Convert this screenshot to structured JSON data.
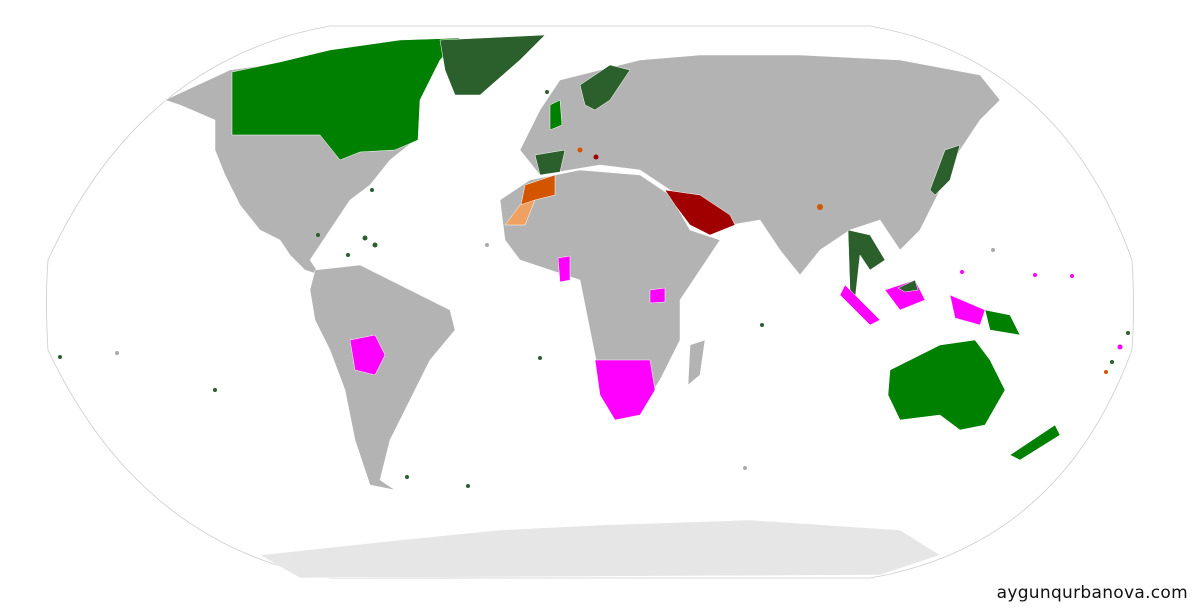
{
  "watermark": "aygunqurbanova.com",
  "colors": {
    "background": "#ffffff",
    "land_default": "#b3b3b3",
    "antarctica": "#e6e6e6",
    "green": "#008000",
    "dark_green": "#2b5f2b",
    "orange": "#d45500",
    "dark_red": "#a00000",
    "magenta": "#ff00ff"
  }
}
